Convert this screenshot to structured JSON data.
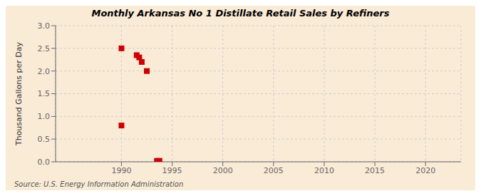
{
  "chart_data": {
    "type": "scatter",
    "title": "Monthly Arkansas No 1 Distillate Retail Sales by Refiners",
    "ylabel": "Thousand Gallons per Day",
    "annotation": "Source: U.S. Energy Information Administration",
    "x": [
      1990.0,
      1990.0,
      1991.5,
      1991.75,
      1992.0,
      1992.5,
      1993.5,
      1993.75
    ],
    "values": [
      2.5,
      0.8,
      2.35,
      2.3,
      2.2,
      2.0,
      0.02,
      0.02
    ],
    "color": "#cc0000",
    "marker": "square",
    "xlim": [
      1983.5,
      2023.5
    ],
    "ylim": [
      0.0,
      3.0
    ],
    "xticks": [
      1990,
      1995,
      2000,
      2005,
      2010,
      2015,
      2020
    ],
    "yticks": [
      {
        "value": 0,
        "label": "0.0"
      },
      0.5,
      {
        "value": 1,
        "label": "1.0"
      },
      1.5,
      {
        "value": 2,
        "label": "2.0"
      },
      2.5,
      {
        "value": 3,
        "label": "3.0"
      }
    ],
    "grid": true
  }
}
